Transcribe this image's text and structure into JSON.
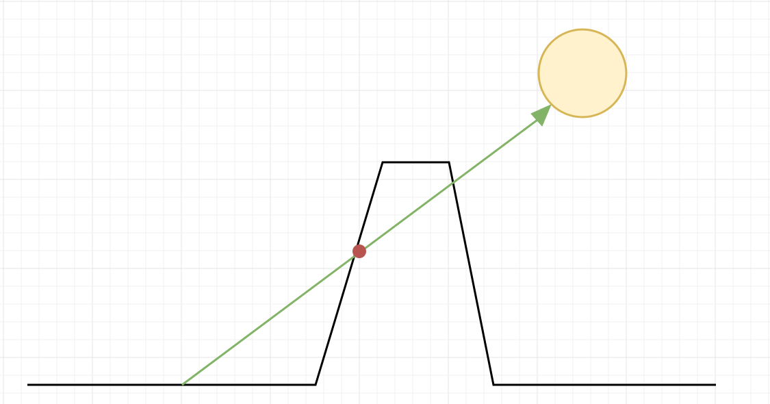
{
  "diagram": {
    "background_color": "#ffffff",
    "grid": {
      "visible": true,
      "minor_color": "#f0f0f0",
      "major_color": "#e4e4e4"
    },
    "terrain": {
      "description": "ground-line-with-trapezoid-hill",
      "stroke_color": "#000000"
    },
    "sight_line": {
      "stroke_color": "#82b366",
      "arrowhead": "filled"
    },
    "sun": {
      "fill_color": "#fff2cc",
      "stroke_color": "#d6b656"
    },
    "intersection_point": {
      "fill_color": "#b85450"
    }
  }
}
